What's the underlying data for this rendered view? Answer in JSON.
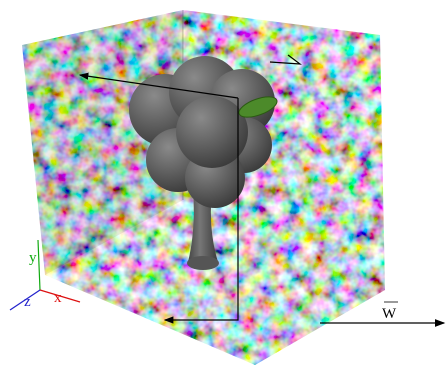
{
  "axes": {
    "x": "x",
    "y": "y",
    "z": "z"
  },
  "wind": {
    "label": "W"
  }
}
